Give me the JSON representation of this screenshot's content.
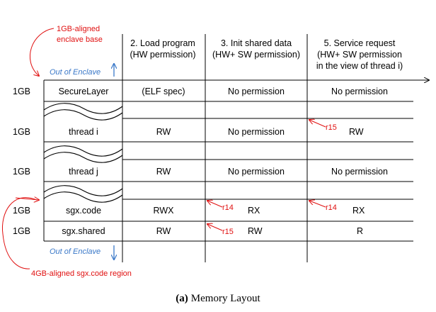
{
  "annotations": {
    "base_line1": "1GB-aligned",
    "base_line2": "enclave base",
    "region": "4GB-aligned sgx.code region",
    "out_top": "Out of Enclave",
    "out_bottom": "Out of Enclave"
  },
  "headers": {
    "load": [
      "2. Load program",
      "(HW permission)"
    ],
    "init": [
      "3. Init shared data",
      "(HW+ SW permission)"
    ],
    "service": [
      "5. Service request",
      "(HW+ SW permission",
      "in the view of thread i)"
    ]
  },
  "rows": [
    {
      "size": "1GB",
      "name": "SecureLayer",
      "load": "(ELF spec)",
      "init": "No permission",
      "service": "No permission"
    },
    {
      "size": "1GB",
      "name": "thread i",
      "load": "RW",
      "init": "No permission",
      "service": "RW",
      "service_reg": "r15"
    },
    {
      "size": "1GB",
      "name": "thread j",
      "load": "RW",
      "init": "No permission",
      "service": "No permission"
    },
    {
      "size": "1GB",
      "name": "sgx.code",
      "load": "RWX",
      "init": "RX",
      "init_reg": "r14",
      "service": "RX",
      "service_reg": "r14"
    },
    {
      "size": "1GB",
      "name": "sgx.shared",
      "load": "RW",
      "init": "RW",
      "init_reg": "r15",
      "service": "R"
    }
  ],
  "caption": {
    "label": "(a)",
    "text": "Memory Layout"
  },
  "colors": {
    "annotation": "#e01010",
    "out_of_enclave": "#3a78c8"
  }
}
